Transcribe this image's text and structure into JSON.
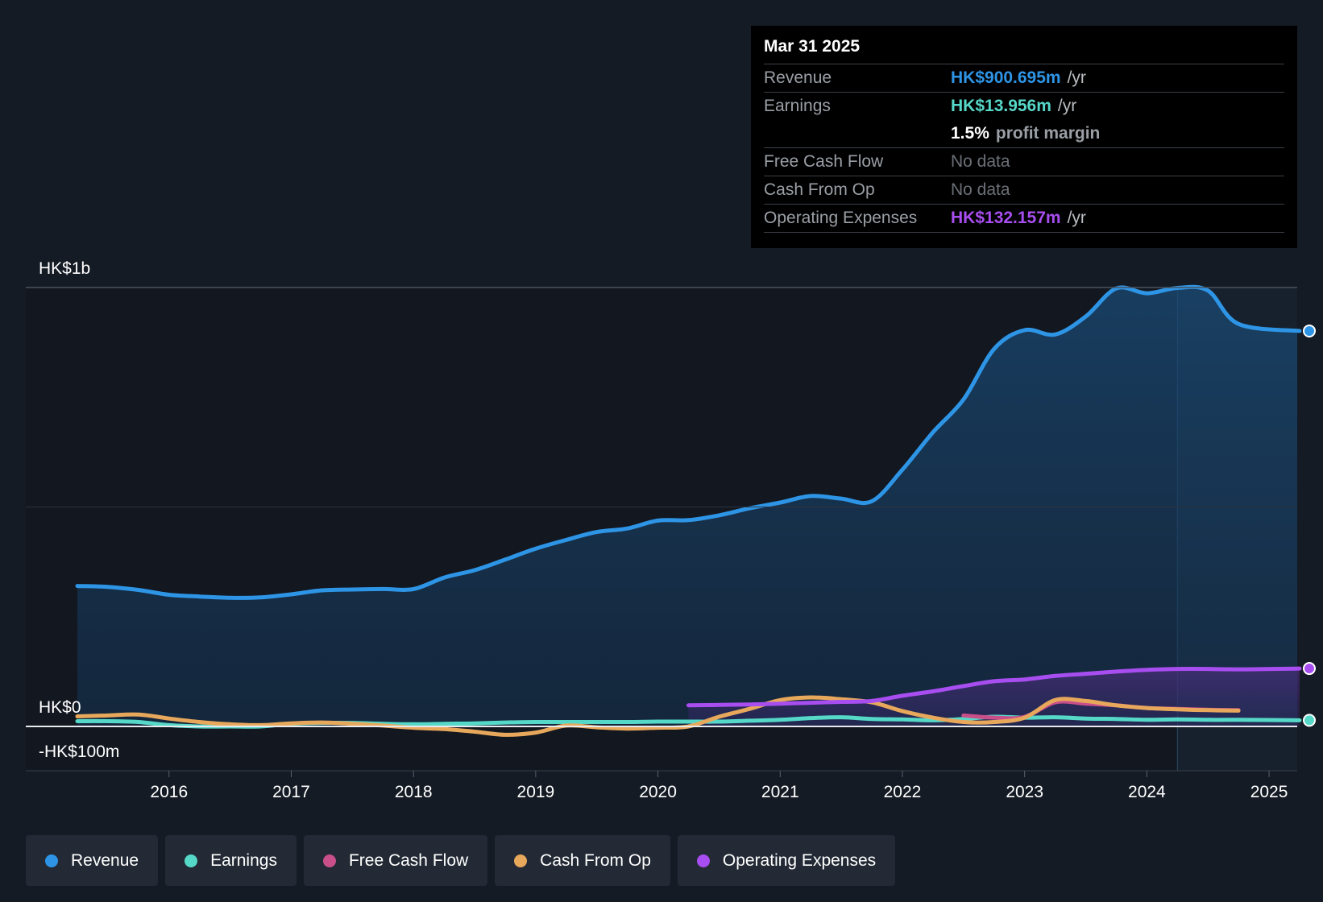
{
  "chart_data": {
    "type": "line",
    "y_axis_labels": {
      "top": "HK$1b",
      "zero": "HK$0",
      "bottom": "-HK$100m"
    },
    "ylim": [
      -100,
      1000
    ],
    "xlim": [
      2015.25,
      2025.25
    ],
    "x_ticks": [
      "2016",
      "2017",
      "2018",
      "2019",
      "2020",
      "2021",
      "2022",
      "2023",
      "2024",
      "2025"
    ],
    "series": [
      {
        "name": "Revenue",
        "color": "#2e95e6",
        "fill": true,
        "x": [
          2015.25,
          2015.5,
          2015.75,
          2016.0,
          2016.25,
          2016.5,
          2016.75,
          2017.0,
          2017.25,
          2017.5,
          2017.75,
          2018.0,
          2018.25,
          2018.5,
          2018.75,
          2019.0,
          2019.25,
          2019.5,
          2019.75,
          2020.0,
          2020.25,
          2020.5,
          2020.75,
          2021.0,
          2021.25,
          2021.5,
          2021.75,
          2022.0,
          2022.25,
          2022.5,
          2022.75,
          2023.0,
          2023.25,
          2023.5,
          2023.75,
          2024.0,
          2024.25,
          2024.5,
          2024.75,
          2025.25
        ],
        "y": [
          320,
          318,
          311,
          300,
          296,
          293,
          294,
          301,
          310,
          312,
          313,
          313,
          339,
          356,
          380,
          405,
          425,
          443,
          451,
          469,
          470,
          481,
          497,
          510,
          525,
          519,
          513,
          585,
          670,
          745,
          860,
          903,
          893,
          934,
          998,
          987,
          999,
          993,
          917,
          901
        ]
      },
      {
        "name": "Earnings",
        "color": "#56d8c8",
        "x": [
          2015.25,
          2015.5,
          2015.75,
          2016.0,
          2016.25,
          2016.5,
          2016.75,
          2017.0,
          2017.25,
          2017.5,
          2017.75,
          2018.0,
          2018.25,
          2018.5,
          2018.75,
          2019.0,
          2019.25,
          2019.5,
          2019.75,
          2020.0,
          2020.25,
          2020.5,
          2020.75,
          2021.0,
          2021.25,
          2021.5,
          2021.75,
          2022.0,
          2022.25,
          2022.5,
          2022.75,
          2023.0,
          2023.25,
          2023.5,
          2023.75,
          2024.0,
          2024.25,
          2024.5,
          2024.75,
          2025.25
        ],
        "y": [
          12,
          12,
          10,
          3,
          0,
          0,
          0,
          6,
          8,
          8,
          6,
          5,
          6,
          7,
          9,
          10,
          10,
          10,
          10,
          11,
          11,
          11,
          13,
          15,
          19,
          21,
          17,
          16,
          14,
          17,
          22,
          20,
          21,
          18,
          17,
          15,
          16,
          15,
          15,
          14
        ]
      },
      {
        "name": "Free Cash Flow",
        "color": "#c94f8a",
        "x": [
          2022.5,
          2022.75,
          2023.0,
          2023.25,
          2023.5,
          2023.75,
          2024.0,
          2024.25,
          2024.5,
          2024.75
        ],
        "y": [
          25,
          20,
          22,
          55,
          52,
          48,
          42,
          40,
          38,
          37
        ]
      },
      {
        "name": "Cash From Op",
        "color": "#e8a85c",
        "x": [
          2015.25,
          2015.5,
          2015.75,
          2016.0,
          2016.25,
          2016.5,
          2016.75,
          2017.0,
          2017.25,
          2017.5,
          2017.75,
          2018.0,
          2018.25,
          2018.5,
          2018.75,
          2019.0,
          2019.25,
          2019.5,
          2019.75,
          2020.0,
          2020.25,
          2020.5,
          2020.75,
          2021.0,
          2021.25,
          2021.5,
          2021.75,
          2022.0,
          2022.25,
          2022.5,
          2022.75,
          2023.0,
          2023.25,
          2023.5,
          2023.75,
          2024.0,
          2024.25,
          2024.5,
          2024.75
        ],
        "y": [
          23,
          25,
          27,
          18,
          10,
          5,
          3,
          7,
          9,
          6,
          2,
          -3,
          -6,
          -12,
          -19,
          -14,
          2,
          -2,
          -5,
          -3,
          0,
          22,
          40,
          60,
          66,
          62,
          55,
          35,
          20,
          10,
          10,
          20,
          60,
          58,
          48,
          42,
          39,
          37,
          36
        ]
      },
      {
        "name": "Operating Expenses",
        "color": "#a84ef0",
        "fill": true,
        "x": [
          2020.25,
          2020.5,
          2020.75,
          2021.0,
          2021.25,
          2021.5,
          2021.75,
          2022.0,
          2022.25,
          2022.5,
          2022.75,
          2023.0,
          2023.25,
          2023.5,
          2023.75,
          2024.0,
          2024.25,
          2024.5,
          2024.75,
          2025.25
        ],
        "y": [
          48,
          49,
          50,
          52,
          54,
          56,
          58,
          70,
          80,
          92,
          103,
          107,
          115,
          120,
          125,
          129,
          131,
          131,
          130,
          132
        ]
      }
    ]
  },
  "tooltip": {
    "date": "Mar 31 2025",
    "revenue": {
      "label": "Revenue",
      "value": "HK$900.695m",
      "unit": "/yr",
      "color": "#2e95e6"
    },
    "earnings": {
      "label": "Earnings",
      "value": "HK$13.956m",
      "unit": "/yr",
      "color": "#56d8c8"
    },
    "margin": {
      "pct": "1.5%",
      "text": "profit margin"
    },
    "fcf": {
      "label": "Free Cash Flow",
      "value": "No data"
    },
    "cfo": {
      "label": "Cash From Op",
      "value": "No data"
    },
    "opex": {
      "label": "Operating Expenses",
      "value": "HK$132.157m",
      "unit": "/yr",
      "color": "#a84ef0"
    }
  },
  "legend": [
    {
      "label": "Revenue",
      "color": "#2e95e6"
    },
    {
      "label": "Earnings",
      "color": "#56d8c8"
    },
    {
      "label": "Free Cash Flow",
      "color": "#c94f8a"
    },
    {
      "label": "Cash From Op",
      "color": "#e8a85c"
    },
    {
      "label": "Operating Expenses",
      "color": "#a84ef0"
    }
  ]
}
